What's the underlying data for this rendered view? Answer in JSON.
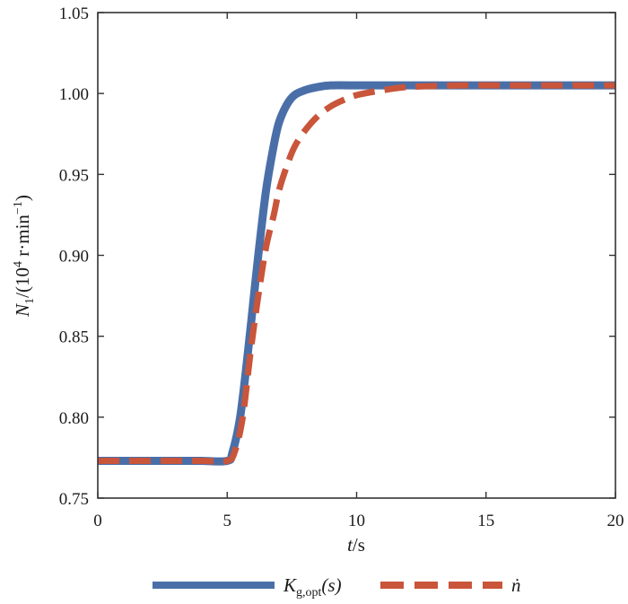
{
  "chart_data": {
    "type": "line",
    "xlabel": {
      "var": "t",
      "unit": "/s"
    },
    "ylabel": {
      "var": "N",
      "sub": "1",
      "pre": "/(10",
      "sup1": "4",
      "mid": " r·min",
      "sup2": "−1",
      "post": ")"
    },
    "xlim": [
      0,
      20
    ],
    "ylim": [
      0.75,
      1.05
    ],
    "x_ticks": [
      0,
      5,
      10,
      15,
      20
    ],
    "x_tick_labels": [
      "0",
      "5",
      "10",
      "15",
      "20"
    ],
    "y_ticks": [
      0.75,
      0.8,
      0.85,
      0.9,
      0.95,
      1.0,
      1.05
    ],
    "y_tick_labels": [
      "0.75",
      "0.80",
      "0.85",
      "0.90",
      "0.95",
      "1.00",
      "1.05"
    ],
    "grid": false,
    "legend_position": "bottom",
    "series": [
      {
        "name": "Kg,opt(s)",
        "legend": {
          "main": "K",
          "sub": "g,opt",
          "rest": "(s)"
        },
        "color": "#4a6fa8",
        "style": "solid",
        "x": [
          0,
          1,
          2,
          3,
          4,
          5,
          5.2,
          5.5,
          5.8,
          6.0,
          6.2,
          6.5,
          6.8,
          7.0,
          7.3,
          7.6,
          8.0,
          8.5,
          9.0,
          10,
          11,
          12,
          14,
          16,
          18,
          20
        ],
        "y": [
          0.773,
          0.773,
          0.773,
          0.773,
          0.773,
          0.773,
          0.778,
          0.8,
          0.84,
          0.87,
          0.9,
          0.94,
          0.968,
          0.982,
          0.993,
          0.999,
          1.002,
          1.004,
          1.005,
          1.005,
          1.005,
          1.005,
          1.005,
          1.005,
          1.005,
          1.005
        ]
      },
      {
        "name": "ṅ",
        "legend": {
          "main": "ṅ"
        },
        "color": "#c9553a",
        "style": "dashed",
        "x": [
          0,
          1,
          2,
          3,
          4,
          5,
          5.3,
          5.6,
          5.9,
          6.2,
          6.5,
          6.8,
          7.0,
          7.3,
          7.6,
          8.0,
          8.5,
          9.0,
          9.5,
          10,
          11,
          12,
          14,
          16,
          18,
          20
        ],
        "y": [
          0.773,
          0.773,
          0.773,
          0.773,
          0.773,
          0.773,
          0.779,
          0.8,
          0.84,
          0.875,
          0.905,
          0.925,
          0.94,
          0.955,
          0.967,
          0.977,
          0.986,
          0.992,
          0.996,
          0.999,
          1.002,
          1.004,
          1.005,
          1.005,
          1.005,
          1.005
        ]
      }
    ]
  }
}
